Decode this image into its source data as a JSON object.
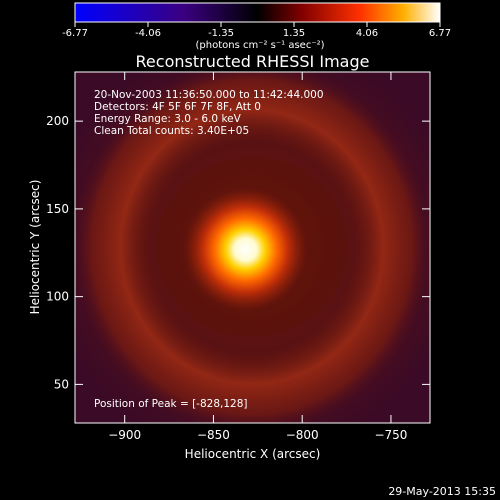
{
  "colorbar": {
    "ticks": [
      "-6.77",
      "-4.06",
      "-1.35",
      "1.35",
      "4.06",
      "6.77"
    ],
    "unit_label": "(photons cm⁻² s⁻¹ asec⁻²)"
  },
  "chart_data": {
    "type": "heatmap",
    "title": "Reconstructed RHESSI Image",
    "xlabel": "Heliocentric X (arcsec)",
    "ylabel": "Heliocentric Y (arcsec)",
    "xlim": [
      -928,
      -728
    ],
    "ylim": [
      28,
      228
    ],
    "x_ticks": [
      -900,
      -850,
      -800,
      -750
    ],
    "y_ticks": [
      50,
      100,
      150,
      200
    ],
    "x_tick_labels": [
      "−900",
      "−850",
      "−800",
      "−750"
    ],
    "y_tick_labels": [
      "50",
      "100",
      "150",
      "200"
    ],
    "color_range": [
      -6.77,
      6.77
    ],
    "peak": {
      "x": -828,
      "y": 128,
      "value": 6.77
    },
    "info_lines": [
      "20-Nov-2003 11:36:50.000 to 11:42:44.000",
      "Detectors: 4F 5F 6F 7F 8F, Att 0",
      "Energy Range: 3.0 - 6.0 keV",
      "Clean    Total counts: 3.40E+05"
    ],
    "peak_label": "Position of Peak = [-828,128]"
  },
  "footer": {
    "timestamp": "29-May-2013 15:35"
  },
  "colors": {
    "background": "#000000",
    "text": "#ffffff"
  }
}
